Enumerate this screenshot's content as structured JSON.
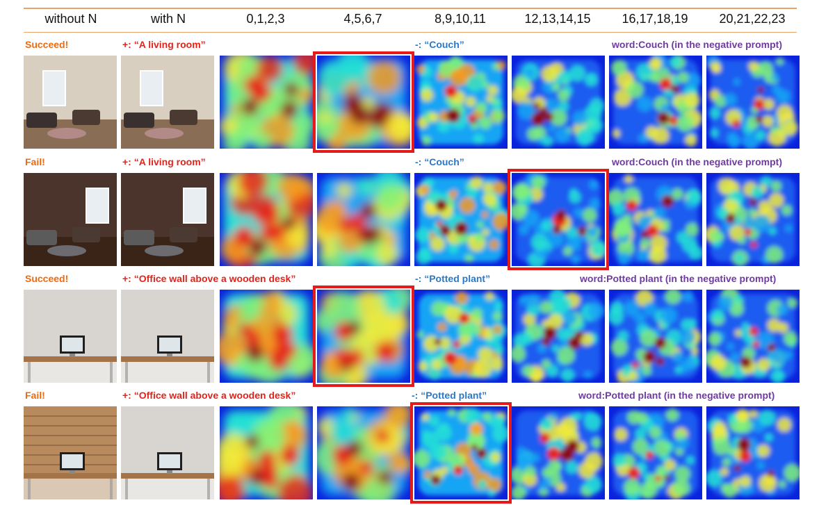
{
  "columns": [
    "without N",
    "with N",
    "0,1,2,3",
    "4,5,6,7",
    "8,9,10,11",
    "12,13,14,15",
    "16,17,18,19",
    "20,21,22,23"
  ],
  "rows": [
    {
      "status": "Succeed!",
      "positive": "+:  “A living room”",
      "negative": "-:  “Couch”",
      "word": "word:Couch (in the negative prompt)",
      "without_img": "living-room-photo",
      "with_img": "living-room-photo",
      "highlight_col": 3
    },
    {
      "status": "Fail!",
      "positive": "+:  “A living room”",
      "negative": "-:  “Couch”",
      "word": "word:Couch (in the negative prompt)",
      "without_img": "living-room-photo",
      "with_img": "living-room-photo",
      "highlight_col": 5
    },
    {
      "status": "Succeed!",
      "positive": "+:  “Office wall above a wooden desk”",
      "negative": "-:  “Potted plant”",
      "word": "word:Potted plant (in the negative prompt)",
      "without_img": "office-desk-photo",
      "with_img": "office-desk-photo",
      "highlight_col": 3
    },
    {
      "status": "Fail!",
      "positive": "+:  “Office wall above a wooden desk”",
      "negative": "-:  “Potted plant”",
      "word": "word:Potted plant (in the negative prompt)",
      "without_img": "office-desk-photo",
      "with_img": "office-desk-photo",
      "highlight_col": 4
    }
  ],
  "colors": {
    "status": "#ee6a10",
    "positive": "#e2231a",
    "negative": "#2a78c8",
    "word": "#6f3aa3",
    "highlight": "#e51b1b",
    "rule": "#e8a36a"
  }
}
